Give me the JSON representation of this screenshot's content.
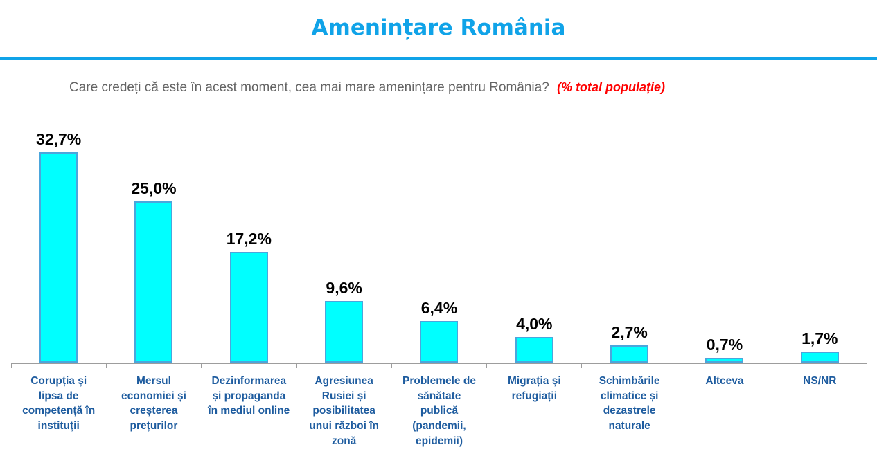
{
  "header": {
    "title": "Amenințare România"
  },
  "question": {
    "text": "Care credeți că este în acest moment, cea mai mare amenințare pentru România?",
    "note": "(% total populație)"
  },
  "chart_data": {
    "type": "bar",
    "title": "Amenințare România",
    "subtitle": "Care credeți că este în acest moment, cea mai mare amenințare pentru România? (% total populație)",
    "categories": [
      "Corupția și lipsa de competență în instituții",
      "Mersul economiei și creșterea prețurilor",
      "Dezinformarea și propaganda în mediul online",
      "Agresiunea Rusiei și posibilitatea unui război în zonă",
      "Problemele de sănătate publică (pandemii, epidemii)",
      "Migrația și refugiații",
      "Schimbările climatice și dezastrele naturale",
      "Altceva",
      "NS/NR"
    ],
    "values": [
      32.7,
      25.0,
      17.2,
      9.6,
      6.4,
      4.0,
      2.7,
      0.7,
      1.7
    ],
    "value_labels": [
      "32,7%",
      "25,0%",
      "17,2%",
      "9,6%",
      "6,4%",
      "4,0%",
      "2,7%",
      "0,7%",
      "1,7%"
    ],
    "xlabel": "",
    "ylabel": "% total populație",
    "ylim": [
      0,
      35
    ],
    "grid": false,
    "legend": "none",
    "colors": {
      "title_accent": "#10a3e8",
      "question_text": "#646464",
      "note_red": "#ff0000",
      "bar_fill": "#00ffff",
      "bar_border": "#4ba6dc",
      "value_label": "#000000",
      "category_label": "#1e5c9f",
      "axis_line": "#9d9d9d"
    }
  }
}
